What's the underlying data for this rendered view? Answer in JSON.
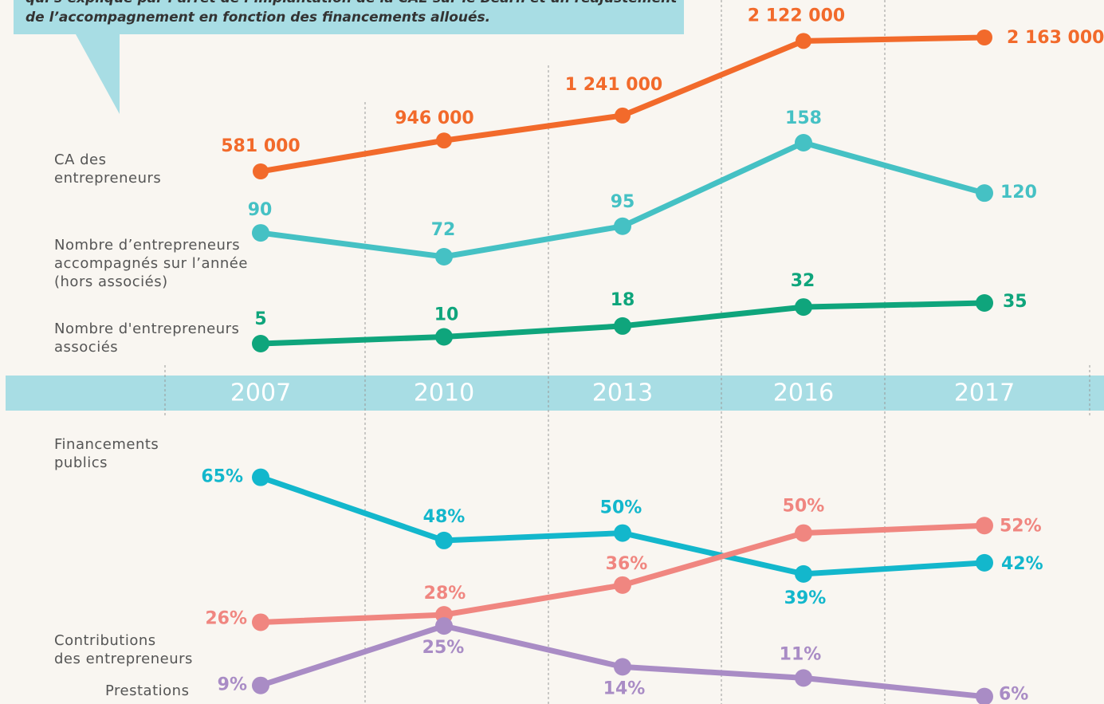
{
  "chart_data": [
    {
      "type": "line",
      "annotation": "qui s’explique par l’arrêt de l’implantation de la CAE sur le Béarn et un réajustement\nde l’accompagnement en fonction des financements alloués.",
      "categories": [
        "2007",
        "2010",
        "2013",
        "2016",
        "2017"
      ],
      "series": [
        {
          "name": "CA des\nentrepreneurs",
          "color": "#f26a2b",
          "values": [
            581000,
            946000,
            1241000,
            2122000,
            2163000
          ],
          "value_labels": [
            "581 000",
            "946 000",
            "1 241 000",
            "2 122 000",
            "2 163 000"
          ]
        },
        {
          "name": "Nombre d’entrepreneurs\naccompagnés sur l’année\n(hors associés)",
          "color": "#45c1c4",
          "values": [
            90,
            72,
            95,
            158,
            120
          ]
        },
        {
          "name": "Nombre d'entrepreneurs\nassociés",
          "color": "#0fa57c",
          "values": [
            5,
            10,
            18,
            32,
            35
          ]
        }
      ]
    },
    {
      "type": "line",
      "ylim": [
        4,
        66
      ],
      "series": [
        {
          "name": "Financements\npublics",
          "color": "#13b7cc",
          "values": [
            65,
            48,
            50,
            39,
            42
          ],
          "value_labels": [
            "65%",
            "48%",
            "50%",
            "39%",
            "42%"
          ]
        },
        {
          "name": "Contributions\ndes entrepreneurs",
          "color": "#f08680",
          "values": [
            26,
            28,
            36,
            50,
            52
          ],
          "value_labels": [
            "26%",
            "28%",
            "36%",
            "50%",
            "52%"
          ]
        },
        {
          "name": "Prestations",
          "color": "#a98cc5",
          "values": [
            9,
            25,
            14,
            11,
            6
          ],
          "value_labels": [
            "9%",
            "25%",
            "14%",
            "11%",
            "6%"
          ]
        }
      ]
    }
  ]
}
